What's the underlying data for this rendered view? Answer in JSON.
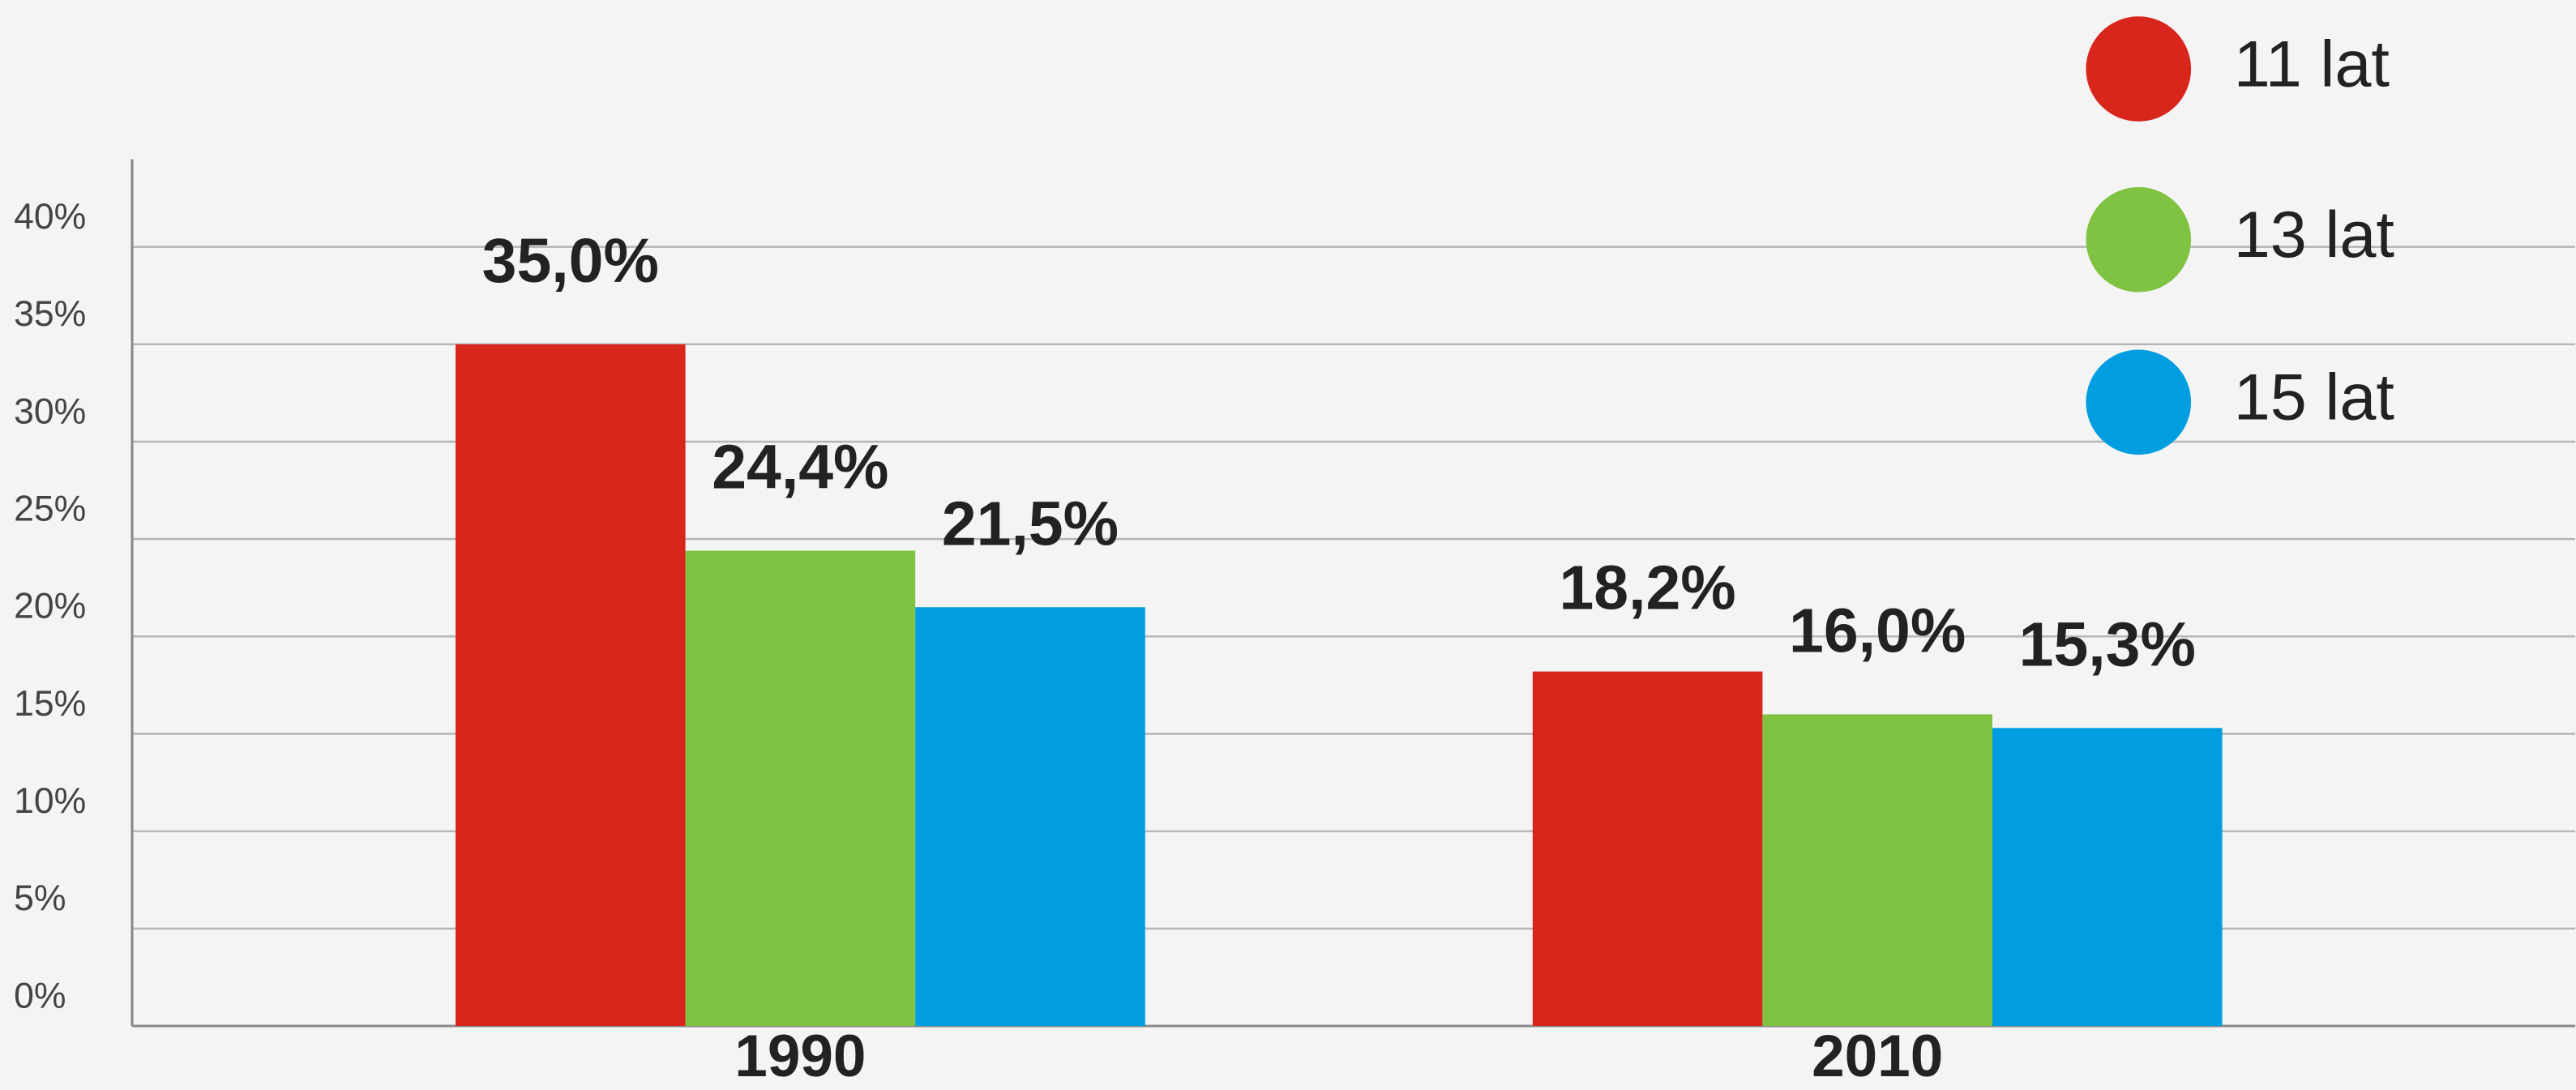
{
  "chart_data": {
    "type": "bar",
    "categories": [
      "1990",
      "2010"
    ],
    "series": [
      {
        "name": "11 lat",
        "color": "#d9261c",
        "values": [
          35.0,
          18.2
        ],
        "value_labels": [
          "35,0%",
          "18,2%"
        ]
      },
      {
        "name": "13 lat",
        "color": "#80c242",
        "values": [
          24.4,
          16.0
        ],
        "value_labels": [
          "24,4%",
          "16,0%"
        ]
      },
      {
        "name": "15 lat",
        "color": "#009ee0",
        "values": [
          21.5,
          15.3
        ],
        "value_labels": [
          "21,5%",
          "15,3%"
        ]
      }
    ],
    "ylim": [
      0,
      44.5
    ],
    "yticks": [
      {
        "value": 0,
        "label": "0%"
      },
      {
        "value": 5,
        "label": "5%"
      },
      {
        "value": 10,
        "label": "10%"
      },
      {
        "value": 15,
        "label": "15%"
      },
      {
        "value": 20,
        "label": "20%"
      },
      {
        "value": 25,
        "label": "25%"
      },
      {
        "value": 30,
        "label": "30%"
      },
      {
        "value": 35,
        "label": "35%"
      },
      {
        "value": 40,
        "label": "40%"
      }
    ],
    "grid": true,
    "legend": "top-right"
  }
}
